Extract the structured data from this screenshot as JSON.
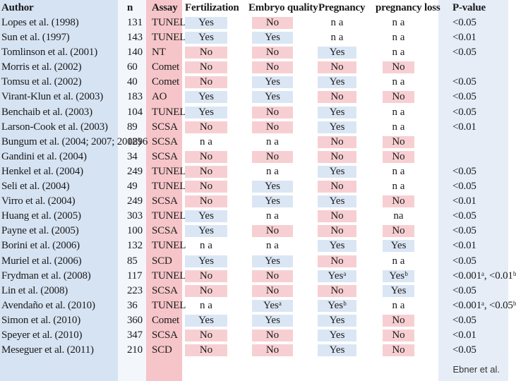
{
  "columns": {
    "author": "Author",
    "n": "n",
    "assay": "Assay",
    "fertilization": "Fertilization",
    "embryo_quality": "Embryo quality",
    "pregnancy": "Pregnancy",
    "pregnancy_loss": "pregnancy loss",
    "p_value": "P-value"
  },
  "rows": [
    {
      "author": "Lopes et al. (1998)",
      "n": "131",
      "assay": "TUNEL",
      "fert": "Yes",
      "emb": "No",
      "preg": "n a",
      "loss": "n a",
      "p": "<0.05"
    },
    {
      "author": "Sun et al. (1997)",
      "n": "143",
      "assay": "TUNEL",
      "fert": "Yes",
      "emb": "Yes",
      "preg": "n a",
      "loss": "n a",
      "p": "<0.01"
    },
    {
      "author": "Tomlinson et al. (2001)",
      "n": "140",
      "assay": "NT",
      "fert": "No",
      "emb": "No",
      "preg": "Yes",
      "loss": "n a",
      "p": "<0.05"
    },
    {
      "author": "Morris et al. (2002)",
      "n": "60",
      "assay": "Comet",
      "fert": "No",
      "emb": "No",
      "preg": "No",
      "loss": "No",
      "p": ""
    },
    {
      "author": "Tomsu et al. (2002)",
      "n": "40",
      "assay": "Comet",
      "fert": "No",
      "emb": "Yes",
      "preg": "Yes",
      "loss": "n a",
      "p": "<0.05"
    },
    {
      "author": "Virant-Klun et al. (2003)",
      "n": "183",
      "assay": "AO",
      "fert": "Yes",
      "emb": "Yes",
      "preg": "No",
      "loss": "No",
      "p": "<0.05"
    },
    {
      "author": "Benchaib et al. (2003)",
      "n": "104",
      "assay": "TUNEL",
      "fert": "Yes",
      "emb": "No",
      "preg": "Yes",
      "loss": "n a",
      "p": "<0.05"
    },
    {
      "author": "Larson-Cook et al. (2003)",
      "n": "89",
      "assay": "SCSA",
      "fert": "No",
      "emb": "No",
      "preg": "Yes",
      "loss": "n a",
      "p": "<0.01"
    },
    {
      "author": "Bungum et al. (2004; 2007; 2008)",
      "n": "1296",
      "assay": "SCSA",
      "fert": "n a",
      "emb": "n a",
      "preg": "No",
      "loss": "No",
      "p": ""
    },
    {
      "author": "Gandini et al. (2004)",
      "n": "34",
      "assay": "SCSA",
      "fert": "No",
      "emb": "No",
      "preg": "No",
      "loss": "No",
      "p": ""
    },
    {
      "author": "Henkel et al. (2004)",
      "n": "249",
      "assay": "TUNEL",
      "fert": "No",
      "emb": "n a",
      "preg": "Yes",
      "loss": "n a",
      "p": "<0.05"
    },
    {
      "author": "Seli et al. (2004)",
      "n": "49",
      "assay": "TUNEL",
      "fert": "No",
      "emb": "Yes",
      "preg": "No",
      "loss": "n a",
      "p": "<0.05"
    },
    {
      "author": "Virro et al. (2004)",
      "n": "249",
      "assay": "SCSA",
      "fert": "No",
      "emb": "Yes",
      "preg": "Yes",
      "loss": "No",
      "p": "<0.01"
    },
    {
      "author": "Huang et al. (2005)",
      "n": "303",
      "assay": "TUNEL",
      "fert": "Yes",
      "emb": "n a",
      "preg": "No",
      "loss": "na",
      "p": "<0.05"
    },
    {
      "author": "Payne et al. (2005)",
      "n": "100",
      "assay": "SCSA",
      "fert": "Yes",
      "emb": "No",
      "preg": "No",
      "loss": "No",
      "p": "<0.05"
    },
    {
      "author": "Borini et al. (2006)",
      "n": "132",
      "assay": "TUNEL",
      "fert": "n a",
      "emb": "n a",
      "preg": "Yes",
      "loss": "Yes",
      "p": "<0.01"
    },
    {
      "author": "Muriel et al. (2006)",
      "n": "85",
      "assay": "SCD",
      "fert": "Yes",
      "emb": "Yes",
      "preg": "No",
      "loss": "n a",
      "p": "<0.05"
    },
    {
      "author": "Frydman et al. (2008)",
      "n": "117",
      "assay": "TUNEL",
      "fert": "No",
      "emb": "No",
      "preg": "Yesᵃ",
      "loss": "Yesᵇ",
      "p": "<0.001ᵃ, <0.01ᵇ"
    },
    {
      "author": "Lin et al. (2008)",
      "n": "223",
      "assay": "SCSA",
      "fert": "No",
      "emb": "No",
      "preg": "No",
      "loss": "Yes",
      "p": "<0.05"
    },
    {
      "author": "Avendaño et al. (2010)",
      "n": "36",
      "assay": "TUNEL",
      "fert": "n a",
      "emb": "Yesᵃ",
      "preg": "Yesᵇ",
      "loss": "n a",
      "p": "<0.001ᵃ, <0.05ᵇ"
    },
    {
      "author": "Simon et al. (2010)",
      "n": "360",
      "assay": "Comet",
      "fert": "Yes",
      "emb": "Yes",
      "preg": "Yes",
      "loss": "No",
      "p": "<0.05"
    },
    {
      "author": "Speyer et al. (2010)",
      "n": "347",
      "assay": "SCSA",
      "fert": "No",
      "emb": "No",
      "preg": "Yes",
      "loss": "No",
      "p": "<0.01"
    },
    {
      "author": "Meseguer et al. (2011)",
      "n": "210",
      "assay": "SCD",
      "fert": "No",
      "emb": "No",
      "preg": "Yes",
      "loss": "No",
      "p": "<0.05"
    }
  ],
  "source": "Ebner et al.",
  "colors": {
    "yes": "#dbe6f4",
    "no": "#f7cfd2",
    "author_col": "#d6e3f3",
    "assay_col": "#f6c5c9"
  }
}
